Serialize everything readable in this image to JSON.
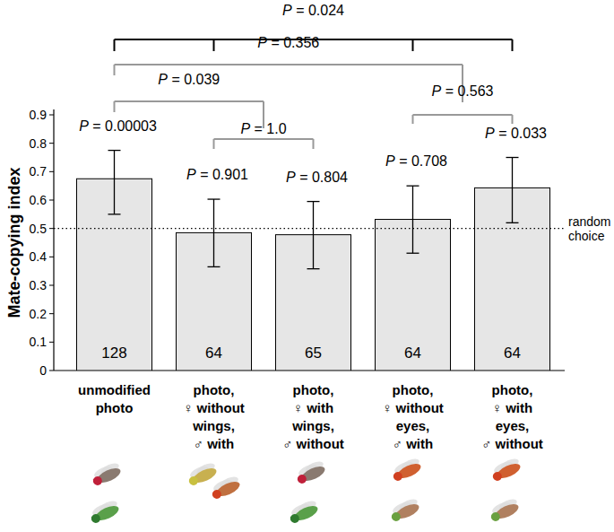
{
  "chart_data": {
    "type": "bar",
    "y_label": "Mate-copying index",
    "categories": [
      "unmodified\nphoto",
      "photo,\n♀ without\nwings,\n♂ with",
      "photo,\n♀ with\nwings,\n♂ without",
      "photo,\n♀ without\neyes,\n♂ with",
      "photo,\n♀ with\neyes,\n♂ without"
    ],
    "values": [
      0.675,
      0.485,
      0.478,
      0.532,
      0.643
    ],
    "error_minus": [
      0.125,
      0.12,
      0.12,
      0.119,
      0.123
    ],
    "error_plus": [
      0.1,
      0.118,
      0.117,
      0.118,
      0.107
    ],
    "sample_sizes": [
      128,
      64,
      65,
      64,
      64
    ],
    "bar_annotations": [
      "P = 0.00003",
      "P = 0.901",
      "P = 0.804",
      "P = 0.708",
      "P = 0.033"
    ],
    "color": "#e6e6e6",
    "ylim": [
      0,
      0.9
    ],
    "yticks": [
      0,
      0.1,
      0.2,
      0.3,
      0.4,
      0.5,
      0.6,
      0.7,
      0.8,
      0.9
    ],
    "grid": false,
    "reference_line": {
      "value": 0.5,
      "label": "random choice"
    },
    "comparisons": [
      {
        "from": 0,
        "to": 4,
        "drops": [
          0,
          1,
          3,
          4
        ],
        "label": "P = 0.024",
        "color": "#000000"
      },
      {
        "from": 0,
        "to": 3.5,
        "label": "P = 0.356",
        "color": "#999999"
      },
      {
        "from": 0,
        "to": 1.5,
        "label": "P = 0.039",
        "color": "#999999"
      },
      {
        "from": 1,
        "to": 2,
        "label": "P = 1.0",
        "color": "#999999"
      },
      {
        "from": 3,
        "to": 4,
        "label": "P = 0.563",
        "color": "#999999"
      }
    ]
  }
}
